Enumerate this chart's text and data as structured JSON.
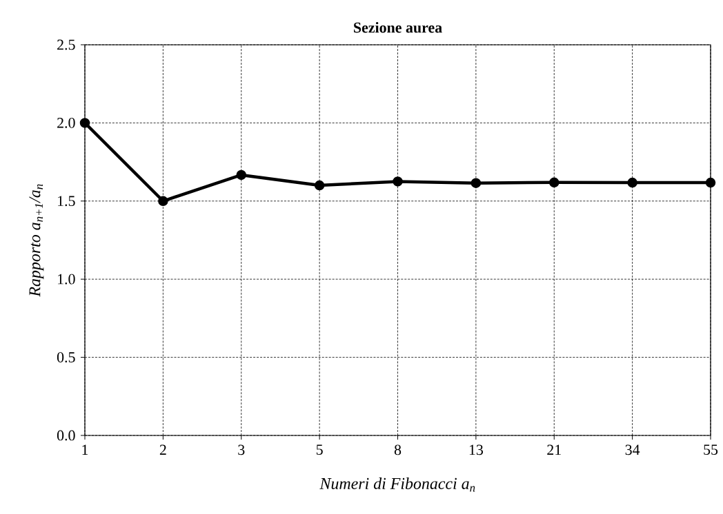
{
  "chart_data": {
    "type": "line",
    "title": "Sezione aurea",
    "xlabel": "Numeri di Fibonacci  a$_{n}$",
    "ylabel": "Rapporto  a$_{n+1}$/a$_{n}$",
    "categories": [
      "1",
      "2",
      "3",
      "5",
      "8",
      "13",
      "21",
      "34",
      "55"
    ],
    "values": [
      2.0,
      1.5,
      1.667,
      1.6,
      1.625,
      1.615,
      1.619,
      1.618,
      1.618
    ],
    "color": "#000000",
    "marker": "circle",
    "line_style": "solid",
    "grid": true,
    "ylim": [
      0,
      2.5
    ],
    "yticks": [
      {
        "value": 0,
        "label": "0.0"
      },
      {
        "value": 0.5,
        "label": "0.5"
      },
      {
        "value": 1,
        "label": "1.0"
      },
      {
        "value": 1.5,
        "label": "1.5"
      },
      {
        "value": 2,
        "label": "2.0"
      },
      {
        "value": 2.5,
        "label": "2.5"
      }
    ]
  }
}
